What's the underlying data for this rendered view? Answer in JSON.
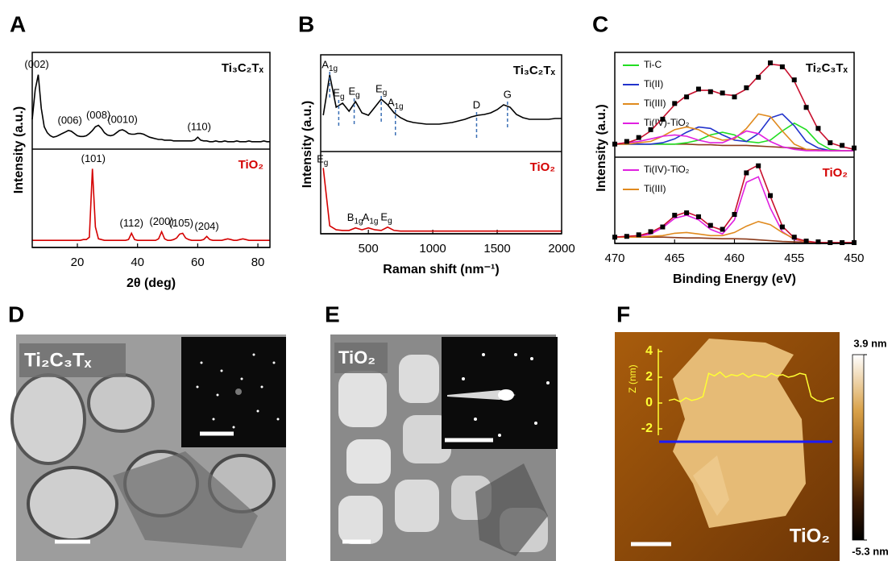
{
  "chart_data": [
    {
      "type": "line",
      "panel": "A",
      "x_label": "2θ (deg)",
      "y_label": "Intensity (a.u.)",
      "xlim": [
        5,
        84
      ],
      "xticks": [
        20,
        40,
        60,
        80
      ],
      "x": [
        5,
        6,
        7,
        8,
        9,
        10,
        11,
        12,
        13,
        14,
        15,
        16,
        17,
        18,
        19,
        20,
        21,
        22,
        23,
        24,
        25,
        26,
        27,
        28,
        29,
        30,
        31,
        32,
        33,
        34,
        35,
        36,
        37,
        38,
        39,
        40,
        41,
        42,
        43,
        44,
        45,
        46,
        47,
        48,
        49,
        50,
        51,
        52,
        53,
        54,
        55,
        56,
        57,
        58,
        59,
        60,
        61,
        62,
        63,
        64,
        65,
        66,
        67,
        68,
        69,
        70,
        71,
        72,
        73,
        74,
        75,
        76,
        77,
        78,
        79,
        80,
        81,
        82,
        83,
        84
      ],
      "subplots": [
        {
          "label": "Ti₃C₂Tₓ",
          "label_color": "#000000",
          "ylim": [
            0,
            130
          ],
          "dashed": false,
          "series": [
            {
              "color": "#000000",
              "values": [
                40,
                80,
                100,
                55,
                30,
                22,
                18,
                16,
                17,
                19,
                21,
                23,
                25,
                24,
                21,
                18,
                17,
                17,
                18,
                21,
                25,
                30,
                32,
                28,
                22,
                19,
                18,
                19,
                22,
                25,
                26,
                24,
                21,
                20,
                20,
                21,
                21,
                20,
                18,
                16,
                15,
                14,
                13,
                13,
                12,
                12,
                12,
                11,
                11,
                11,
                11,
                11,
                11,
                11,
                12,
                16,
                12,
                11,
                11,
                10,
                10,
                11,
                10,
                10,
                11,
                10,
                10,
                10,
                11,
                10,
                10,
                10,
                11,
                10,
                10,
                10,
                10,
                11,
                10,
                10
              ]
            }
          ],
          "annotations": [
            {
              "text": "(002)",
              "x": 6.5
            },
            {
              "text": "(006)",
              "x": 17.5
            },
            {
              "text": "(008)",
              "x": 27
            },
            {
              "text": "(0010)",
              "x": 35
            },
            {
              "text": "(110)",
              "x": 60.5
            }
          ]
        },
        {
          "label": "TiO₂",
          "label_color": "#d40000",
          "ylim": [
            0,
            125
          ],
          "dashed": false,
          "series": [
            {
              "color": "#d40000",
              "values": [
                9,
                9,
                9,
                9,
                9,
                9,
                9,
                9,
                9,
                9,
                9,
                9,
                9,
                9,
                9,
                9,
                9,
                10,
                10,
                13,
                100,
                26,
                11,
                10,
                9,
                9,
                9,
                9,
                9,
                9,
                9,
                9,
                10,
                18,
                10,
                9,
                9,
                9,
                9,
                9,
                9,
                9,
                11,
                20,
                11,
                9,
                9,
                10,
                12,
                17,
                18,
                12,
                10,
                9,
                9,
                9,
                9,
                10,
                14,
                10,
                9,
                9,
                9,
                9,
                10,
                11,
                10,
                9,
                9,
                10,
                11,
                10,
                9,
                9,
                9,
                9,
                9,
                9,
                9,
                9
              ]
            }
          ],
          "annotations": [
            {
              "text": "(101)",
              "x": 25.3
            },
            {
              "text": "(112)",
              "x": 38
            },
            {
              "text": "(200)",
              "x": 48
            },
            {
              "text": "(105)",
              "x": 54.5
            },
            {
              "text": "(204)",
              "x": 63
            }
          ]
        }
      ]
    },
    {
      "type": "line",
      "panel": "B",
      "x_label": "Raman shift (nm⁻¹)",
      "y_label": "Intensity (a.u.)",
      "xlim": [
        130,
        2000
      ],
      "xticks": [
        500,
        1000,
        1500,
        2000
      ],
      "x": [
        150,
        200,
        250,
        300,
        350,
        400,
        450,
        500,
        550,
        600,
        650,
        700,
        750,
        800,
        850,
        900,
        950,
        1000,
        1050,
        1100,
        1150,
        1200,
        1250,
        1300,
        1350,
        1400,
        1450,
        1500,
        1550,
        1600,
        1650,
        1700,
        1750,
        1800,
        1850,
        1900,
        1950,
        2000
      ],
      "subplots": [
        {
          "label": "Ti₃C₂Tₓ",
          "label_color": "#000000",
          "ylim": [
            0,
            120
          ],
          "dashed": true,
          "series": [
            {
              "color": "#000000",
              "values": [
                45,
                95,
                55,
                60,
                50,
                62,
                48,
                45,
                55,
                65,
                58,
                48,
                42,
                38,
                36,
                35,
                34,
                34,
                34,
                35,
                36,
                38,
                40,
                43,
                45,
                46,
                48,
                52,
                58,
                55,
                46,
                42,
                40,
                40,
                40,
                40,
                41,
                41
              ]
            }
          ],
          "annotations": [
            {
              "text": "A1g",
              "x": 200
            },
            {
              "text": "Eg",
              "x": 270
            },
            {
              "text": "Eg",
              "x": 390
            },
            {
              "text": "Eg",
              "x": 600
            },
            {
              "text": "A1g",
              "x": 710
            },
            {
              "text": "D",
              "x": 1340
            },
            {
              "text": "G",
              "x": 1580
            }
          ]
        },
        {
          "label": "TiO₂",
          "label_color": "#d40000",
          "ylim": [
            0,
            125
          ],
          "dashed": false,
          "series": [
            {
              "color": "#d40000",
              "values": [
                100,
                12,
                6,
                5,
                5,
                9,
                6,
                9,
                6,
                5,
                10,
                5,
                4,
                4,
                4,
                4,
                4,
                4,
                4,
                4,
                4,
                4,
                4,
                4,
                4,
                4,
                4,
                4,
                4,
                4,
                4,
                4,
                4,
                4,
                4,
                4,
                4,
                4
              ]
            }
          ],
          "annotations": [
            {
              "text": "Eg",
              "x": 144
            },
            {
              "text": "B1g",
              "x": 397
            },
            {
              "text": "A1g",
              "x": 515
            },
            {
              "text": "Eg",
              "x": 640
            }
          ]
        }
      ]
    },
    {
      "type": "line",
      "panel": "C",
      "x_label": "Binding Energy (eV)",
      "y_label": "Intensity (a.u.)",
      "xlim": [
        470,
        450
      ],
      "xticks": [
        470,
        465,
        460,
        455,
        450
      ],
      "x": [
        470,
        469,
        468,
        467,
        466,
        465,
        464,
        463,
        462,
        461,
        460,
        459,
        458,
        457,
        456,
        455,
        454,
        453,
        452,
        451,
        450
      ],
      "subplots": [
        {
          "label": "Ti₂C₃Tₓ",
          "label_color": "#000000",
          "ylim": [
            0,
            80
          ],
          "dashed": false,
          "series": [
            {
              "color": "#8b3a1a",
              "values": [
                10,
                10,
                10,
                10,
                10,
                10,
                10,
                9.5,
                9.5,
                9,
                9,
                9,
                8.5,
                8,
                7.5,
                7,
                6,
                5.5,
                5,
                5,
                5
              ]
            },
            {
              "name": "Ti-C",
              "color": "#22dd22",
              "values": [
                10,
                10,
                10,
                10,
                10,
                10,
                11,
                13,
                17,
                19,
                17,
                12,
                11,
                13,
                20,
                26,
                21,
                11,
                6,
                5,
                5
              ]
            },
            {
              "name": "Ti(II)",
              "color": "#2233cc",
              "values": [
                10,
                10,
                10,
                10,
                11,
                14,
                19,
                23,
                22,
                17,
                13,
                12,
                18,
                30,
                33,
                24,
                12,
                7,
                5,
                5,
                5
              ]
            },
            {
              "name": "Ti(III)",
              "color": "#e08a1e",
              "values": [
                10,
                10,
                11,
                12,
                16,
                21,
                23,
                21,
                16,
                13,
                14,
                22,
                33,
                31,
                20,
                10,
                6,
                5,
                5,
                5,
                5
              ]
            },
            {
              "name": "Ti(IV)-TiO₂",
              "color": "#e020e0",
              "values": [
                10,
                11,
                12,
                14,
                16,
                17,
                16,
                13,
                11,
                11,
                15,
                20,
                18,
                12,
                8,
                6,
                5,
                5,
                5,
                5,
                5
              ]
            },
            {
              "color": "#c8102e",
              "values": [
                10,
                11,
                14,
                20,
                30,
                40,
                47,
                51,
                51,
                48,
                47,
                52,
                62,
                71,
                70,
                58,
                39,
                21,
                11,
                8,
                6
              ]
            },
            {
              "color": "#000000",
              "style": "markers",
              "values": [
                10,
                12,
                15,
                21,
                29,
                41,
                46,
                52,
                50,
                49,
                46,
                53,
                61,
                72,
                69,
                59,
                38,
                22,
                11,
                9,
                7
              ]
            }
          ],
          "annotations": []
        },
        {
          "label": "TiO₂",
          "label_color": "#d40000",
          "ylim": [
            0,
            110
          ],
          "dashed": false,
          "series": [
            {
              "color": "#8b3a1a",
              "values": [
                8,
                8,
                8,
                8,
                8,
                7.5,
                7,
                7,
                6.5,
                6,
                6,
                5.5,
                4.5,
                3.5,
                2.5,
                2,
                1.5,
                1,
                1,
                1,
                1
              ]
            },
            {
              "name": "Ti(IV)-TiO₂",
              "color": "#e020e0",
              "values": [
                8,
                8,
                9,
                12,
                20,
                32,
                36,
                30,
                18,
                12,
                30,
                78,
                85,
                45,
                15,
                5,
                2,
                1,
                1,
                1,
                1
              ]
            },
            {
              "name": "Ti(III)",
              "color": "#e08a1e",
              "values": [
                8,
                8,
                8,
                9,
                10,
                13,
                14,
                12,
                10,
                10,
                14,
                22,
                28,
                24,
                14,
                6,
                2,
                1,
                1,
                1,
                1
              ]
            },
            {
              "color": "#c8102e",
              "values": [
                8,
                9,
                10,
                14,
                22,
                35,
                40,
                34,
                22,
                17,
                38,
                92,
                100,
                60,
                22,
                7,
                3,
                1,
                1,
                1,
                1
              ]
            },
            {
              "color": "#000000",
              "style": "markers",
              "values": [
                8,
                9,
                11,
                15,
                21,
                36,
                39,
                34,
                23,
                18,
                37,
                90,
                99,
                61,
                21,
                8,
                3,
                2,
                1,
                1,
                1
              ]
            }
          ],
          "annotations": []
        }
      ]
    },
    {
      "type": "line",
      "y_label": "Z (nm)",
      "ylim": [
        -2.5,
        4.2
      ],
      "yticks": [
        4,
        2,
        0,
        -2
      ],
      "color": "#ffff33",
      "values": [
        0.2,
        0.3,
        0.1,
        0.4,
        0.2,
        0.3,
        0.5,
        2.3,
        2.1,
        2.4,
        2.0,
        2.2,
        2.1,
        2.3,
        2.0,
        2.2,
        2.1,
        2.0,
        2.3,
        2.1,
        2.2,
        2.0,
        2.1,
        2.3,
        2.2,
        0.5,
        0.2,
        0.1,
        0.3,
        0.4
      ]
    }
  ],
  "micrographs": [
    {
      "panel": "D",
      "label": "Ti₂C₃Tₓ"
    },
    {
      "panel": "E",
      "label": "TiO₂"
    },
    {
      "panel": "F",
      "label": "TiO₂",
      "colorbar": {
        "lim": [
          -5.3,
          3.9
        ],
        "ticks": [
          {
            "value": 3.9,
            "label": "3.9 nm"
          },
          {
            "value": -5.3,
            "label": "-5.3 nm"
          }
        ]
      }
    }
  ]
}
